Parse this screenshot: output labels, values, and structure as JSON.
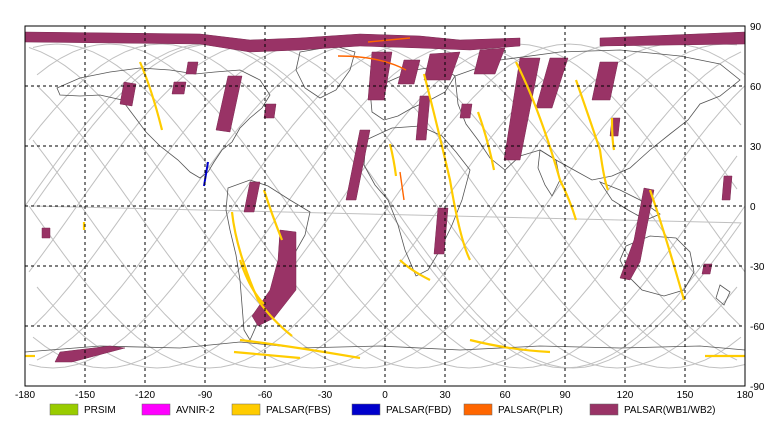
{
  "axes": {
    "x_ticks": [
      "-180",
      "-150",
      "-120",
      "-90",
      "-60",
      "-30",
      "0",
      "30",
      "60",
      "90",
      "120",
      "150",
      "180"
    ],
    "y_ticks": [
      "90",
      "60",
      "30",
      "0",
      "-30",
      "-60",
      "-90"
    ]
  },
  "legend": [
    {
      "label": "PRSIM",
      "color": "#99cc00"
    },
    {
      "label": "AVNIR-2",
      "color": "#ff00ff"
    },
    {
      "label": "PALSAR(FBS)",
      "color": "#ffcc00"
    },
    {
      "label": "PALSAR(FBD)",
      "color": "#0000cc"
    },
    {
      "label": "PALSAR(PLR)",
      "color": "#ff6600"
    },
    {
      "label": "PALSAR(WB1/WB2)",
      "color": "#993366"
    }
  ],
  "colors": {
    "grid": "#000000",
    "orbit": "#c0c0c0",
    "coast": "#555555",
    "wb": "#993366",
    "fbs": "#ffcc00",
    "fbd": "#0000cc",
    "plr": "#ff6600"
  }
}
